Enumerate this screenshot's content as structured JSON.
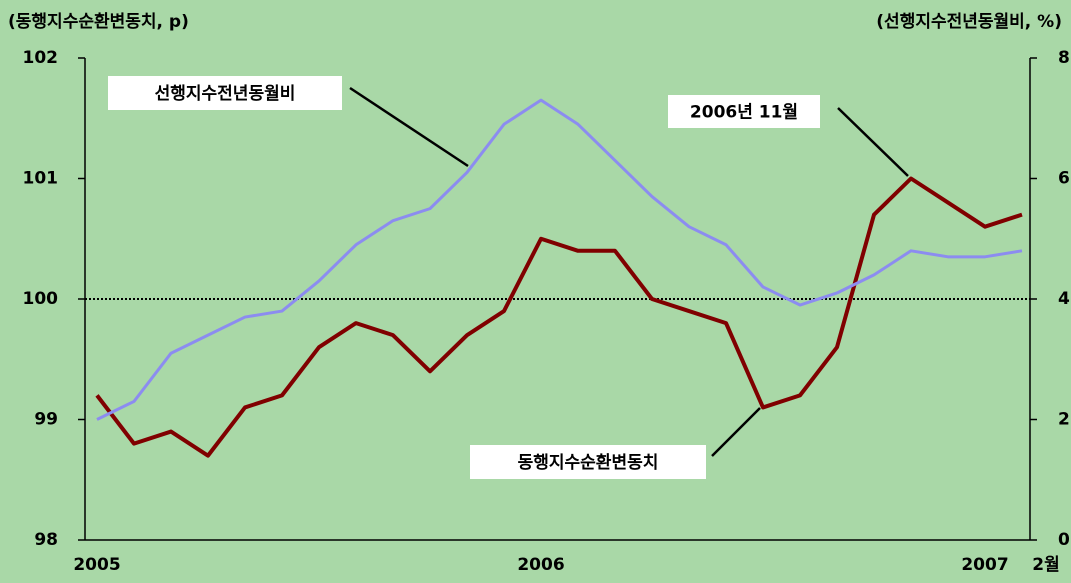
{
  "chart_data": {
    "type": "line",
    "y_label": "(동행지수순환변동치, p)",
    "y2_label": "(선행지수전년동월비, %)",
    "categories": [
      "2005",
      null,
      null,
      null,
      null,
      null,
      null,
      null,
      null,
      null,
      null,
      null,
      "2006",
      null,
      null,
      null,
      null,
      null,
      null,
      null,
      null,
      null,
      null,
      null,
      "2007",
      "2월"
    ],
    "series": [
      {
        "name": "동행지수순환변동치",
        "color": "#800000",
        "values": [
          99.2,
          98.8,
          98.9,
          98.7,
          99.1,
          99.2,
          99.6,
          99.8,
          99.7,
          99.4,
          99.7,
          99.9,
          100.5,
          100.4,
          100.4,
          100.0,
          99.9,
          99.8,
          99.1,
          99.2,
          99.6,
          100.7,
          101.0,
          100.8,
          100.6,
          100.7
        ]
      },
      {
        "name": "선행지수전년동월비",
        "color": "#8c8cf0",
        "axis": "y2",
        "values": [
          2.0,
          2.3,
          3.1,
          3.4,
          3.7,
          3.8,
          4.3,
          4.9,
          5.3,
          5.5,
          6.1,
          6.9,
          7.3,
          6.9,
          6.3,
          5.7,
          5.2,
          4.9,
          4.2,
          3.9,
          4.1,
          4.4,
          4.8,
          4.7,
          4.7,
          4.8
        ]
      }
    ],
    "ylim": [
      98,
      102
    ],
    "yticks": [
      98,
      99,
      100,
      101,
      102
    ],
    "y2lim": [
      0,
      8
    ],
    "y2ticks": [
      0,
      2,
      4,
      6,
      8
    ],
    "hline": 100,
    "annotations": [
      "2006년 11월"
    ]
  }
}
